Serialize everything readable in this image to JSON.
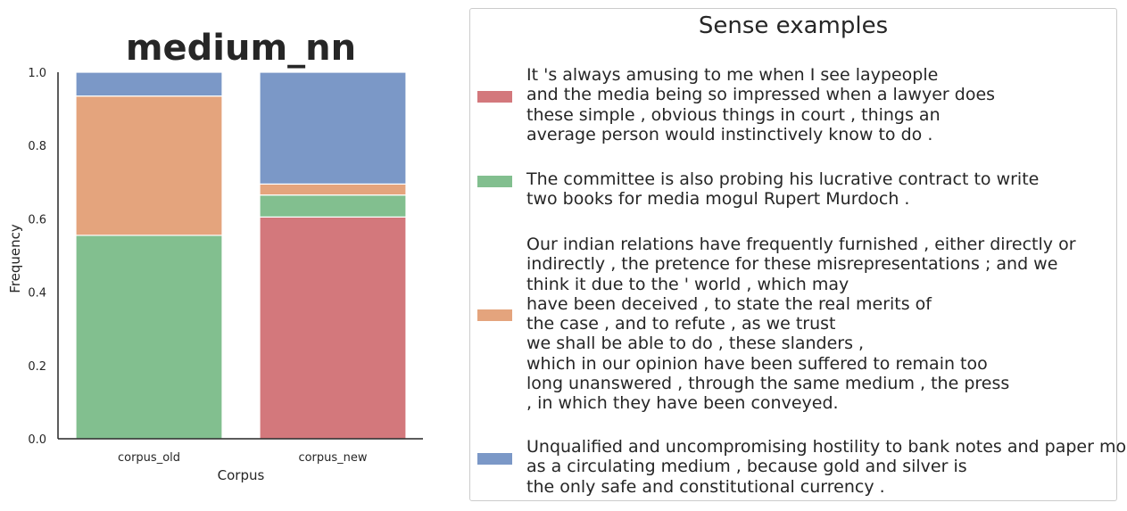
{
  "colors": {
    "sense_1": "#d3787c",
    "sense_2": "#82bf8f",
    "sense_3": "#e4a47d",
    "sense_4": "#7b98c7",
    "axis": "#262626"
  },
  "chart_data": {
    "type": "bar",
    "stacked": true,
    "title": "medium_nn",
    "xlabel": "Corpus",
    "ylabel": "Frequency",
    "ylim": [
      0,
      1.0
    ],
    "yticks": [
      "0.0",
      "0.2",
      "0.4",
      "0.6",
      "0.8",
      "1.0"
    ],
    "categories": [
      "corpus_old",
      "corpus_new"
    ],
    "grid": false,
    "legend_placement": "right",
    "series": [
      {
        "key": "sense_1",
        "values": [
          0.0,
          0.605
        ]
      },
      {
        "key": "sense_2",
        "values": [
          0.555,
          0.06
        ]
      },
      {
        "key": "sense_3",
        "values": [
          0.38,
          0.03
        ]
      },
      {
        "key": "sense_4",
        "values": [
          0.065,
          0.305
        ]
      }
    ]
  },
  "legend": {
    "title": "Sense examples",
    "entries": [
      {
        "key": "sense_1",
        "text": "It 's always amusing to me when I see laypeople\nand the media being so impressed when a lawyer does\nthese simple , obvious things in court , things an\naverage person would instinctively know to do ."
      },
      {
        "key": "sense_2",
        "text": "The committee is also probing his lucrative contract to write\ntwo books for media mogul Rupert Murdoch ."
      },
      {
        "key": "sense_3",
        "text": "Our indian relations have frequently furnished , either directly or\nindirectly , the pretence for these misrepresentations ; and we\nthink it due to the ' world , which may\nhave been deceived , to state the real merits of\nthe case , and to refute , as we trust\nwe shall be able to do , these slanders ,\nwhich in our opinion have been suffered to remain too\nlong unanswered , through the same medium , the press\n, in which they have been conveyed."
      },
      {
        "key": "sense_4",
        "text": "Unqualified and uncompromising hostility to bank notes and paper money\nas a circulating medium , because gold and silver is\nthe only safe and constitutional currency ."
      }
    ]
  }
}
